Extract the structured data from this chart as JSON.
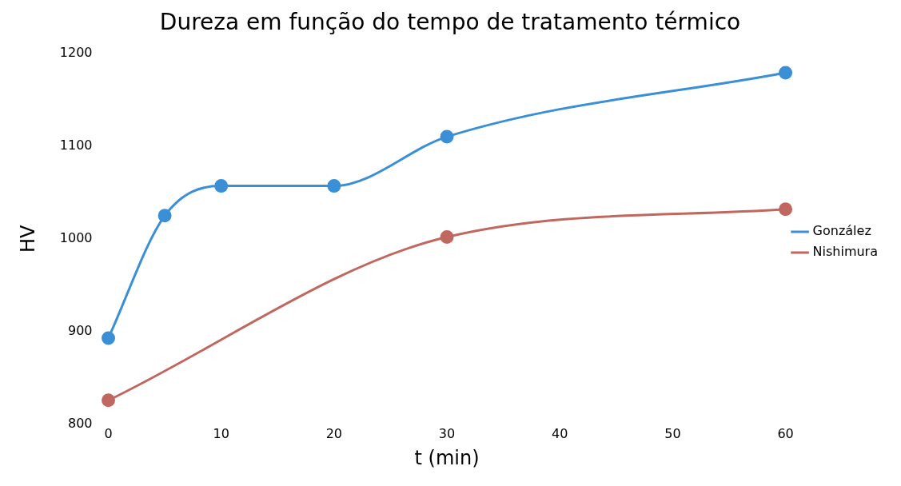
{
  "chart_data": {
    "type": "line",
    "title": "Dureza em função do tempo de tratamento térmico",
    "xlabel": "t (min)",
    "ylabel": "HV",
    "xlim": [
      0,
      60
    ],
    "xticks": [
      0,
      10,
      20,
      30,
      40,
      50,
      60
    ],
    "ylim": [
      800,
      1200
    ],
    "yticks": [
      800,
      900,
      1000,
      1100,
      1200
    ],
    "grid": false,
    "legend": "right",
    "marker": "circle",
    "line_style": "solid",
    "series": [
      {
        "name": "González",
        "color": "#3a8fd6",
        "x": [
          0,
          5,
          10,
          20,
          30,
          60
        ],
        "values": [
          893,
          1025,
          1057,
          1057,
          1110,
          1179
        ]
      },
      {
        "name": "Nishimura",
        "color": "#c0675f",
        "x": [
          0,
          30,
          60
        ],
        "values": [
          826,
          1002,
          1032
        ]
      }
    ]
  }
}
